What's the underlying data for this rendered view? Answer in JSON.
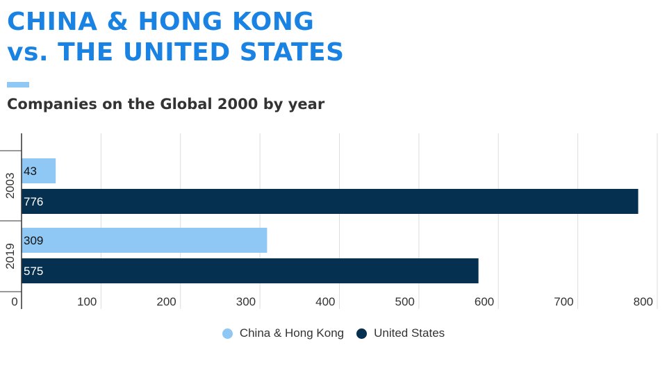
{
  "title": {
    "line1": "CHINA & HONG KONG",
    "line2": "vs. THE UNITED STATES"
  },
  "subtitle": "Companies on the Global 2000 by year",
  "colors": {
    "title": "#1a82e2",
    "china": "#90c8f5",
    "us": "#053050",
    "grid": "#dddddd",
    "axis": "#333333",
    "text": "#333333"
  },
  "chart_data": {
    "type": "bar",
    "orientation": "horizontal",
    "categories": [
      "2003",
      "2019"
    ],
    "series": [
      {
        "name": "China & Hong Kong",
        "values": [
          43,
          309
        ]
      },
      {
        "name": "United States",
        "values": [
          776,
          575
        ]
      }
    ],
    "xlim": [
      0,
      800
    ],
    "xticks": [
      0,
      100,
      200,
      300,
      400,
      500,
      600,
      700,
      800
    ],
    "grid": true,
    "legend": "bottom-center",
    "data_labels": true
  }
}
